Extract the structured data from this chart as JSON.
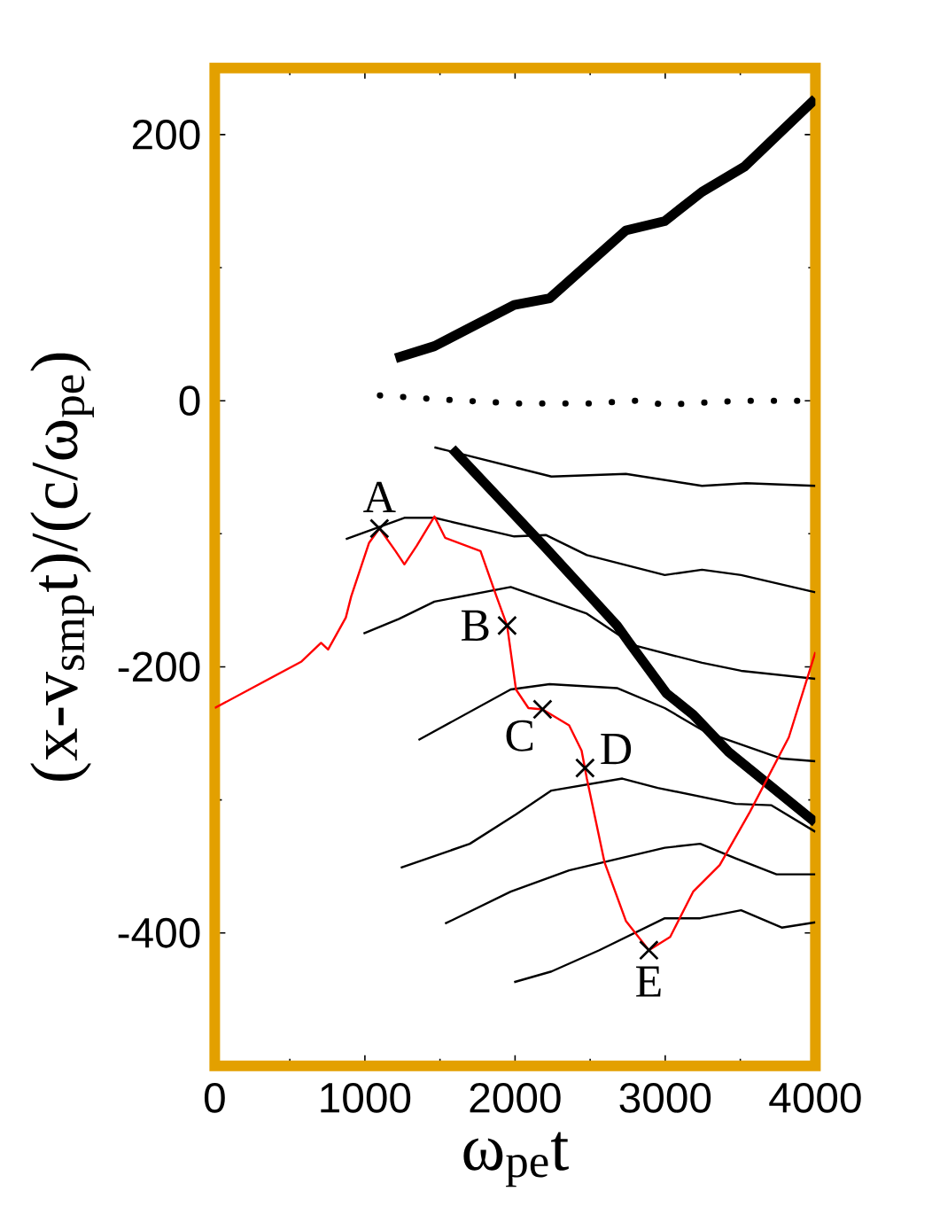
{
  "chart_data": {
    "type": "line",
    "xlabel": "ω$_{pe}$t",
    "ylabel": "(x-v$_{smp}$t)/(c/ω$_{pe}$)",
    "xlim": [
      0,
      4000
    ],
    "ylim": [
      -500,
      250
    ],
    "xticks": [
      0,
      1000,
      2000,
      3000,
      4000
    ],
    "yticks": [
      -400,
      -200,
      0,
      200
    ],
    "marker": "none",
    "series": [
      {
        "color": "#000000",
        "x": [
          1204,
          1463,
          1994,
          2230,
          2738,
          2997,
          3245,
          3528,
          4000
        ],
        "values": [
          32,
          41,
          72,
          77,
          128,
          135,
          157,
          176,
          227
        ]
      },
      {
        "color": "#000000",
        "line_style": "dotted",
        "x": [
          1100,
          1500,
          2000,
          2500,
          2800,
          3000,
          3500,
          4000
        ],
        "values": [
          4,
          1,
          -2,
          -2,
          0,
          -3,
          0,
          0
        ]
      },
      {
        "color": "#000000",
        "x": [
          1581,
          2207,
          2679,
          2761,
          3009,
          3186,
          3422,
          4000
        ],
        "values": [
          -36,
          -111,
          -169,
          -182,
          -220,
          -236,
          -264,
          -317
        ]
      },
      {
        "color": "#000000",
        "x": [
          1463,
          2242,
          2738,
          3245,
          3540,
          4000
        ],
        "values": [
          -35,
          -57,
          -55,
          -64,
          -62,
          -64
        ]
      },
      {
        "color": "#000000",
        "x": [
          873,
          1263,
          1463,
          1994,
          2207,
          2478,
          2997,
          3245,
          3505,
          4000
        ],
        "values": [
          -104,
          -88,
          -88,
          -102,
          -101,
          -116,
          -131,
          -127,
          -131,
          -144
        ]
      },
      {
        "color": "#000000",
        "x": [
          991,
          1227,
          1463,
          1971,
          2478,
          2797,
          3245,
          3505,
          4000
        ],
        "values": [
          -175,
          -164,
          -151,
          -140,
          -160,
          -184,
          -197,
          -203,
          -209
        ]
      },
      {
        "color": "#000000",
        "x": [
          1357,
          1971,
          2230,
          2679,
          2997,
          3269,
          3776,
          4000
        ],
        "values": [
          -255,
          -217,
          -213,
          -216,
          -231,
          -249,
          -269,
          -271
        ]
      },
      {
        "color": "#000000",
        "x": [
          1239,
          1699,
          2006,
          2242,
          2714,
          2950,
          3469,
          3705,
          4000
        ],
        "values": [
          -351,
          -333,
          -311,
          -293,
          -284,
          -291,
          -303,
          -304,
          -324
        ]
      },
      {
        "color": "#000000",
        "x": [
          1534,
          1971,
          2360,
          2997,
          3233,
          3469,
          3741,
          4000
        ],
        "values": [
          -393,
          -369,
          -353,
          -336,
          -333,
          -344,
          -356,
          -356
        ]
      },
      {
        "color": "#000000",
        "x": [
          1994,
          2242,
          2561,
          2997,
          3233,
          3505,
          3776,
          4000
        ],
        "values": [
          -437,
          -429,
          -413,
          -389,
          -389,
          -383,
          -396,
          -392
        ]
      },
      {
        "color": "#ff0000",
        "x": [
          0,
          578,
          708,
          755,
          873,
          909,
          1027,
          1097,
          1204,
          1263,
          1345,
          1463,
          1534,
          1770,
          1876,
          1947,
          2006,
          2089,
          2183,
          2360,
          2443,
          2478,
          2596,
          2738,
          2891,
          3033,
          3186,
          3363,
          3564,
          3823,
          4000
        ],
        "values": [
          -231,
          -196,
          -182,
          -187,
          -163,
          -147,
          -107,
          -96,
          -113,
          -123,
          -109,
          -87,
          -103,
          -113,
          -147,
          -169,
          -217,
          -231,
          -232,
          -244,
          -263,
          -284,
          -347,
          -391,
          -413,
          -403,
          -369,
          -349,
          -309,
          -253,
          -189
        ]
      },
      {
        "type": "scatter",
        "marker": "cross",
        "color": "#000000",
        "x": [
          1097,
          1947,
          2183,
          2466,
          2891
        ],
        "values": [
          -96,
          -169,
          -232,
          -276,
          -413
        ]
      }
    ],
    "annotations": [
      {
        "text": "A",
        "x": 1097,
        "y": -96
      },
      {
        "text": "B",
        "x": 1947,
        "y": -169
      },
      {
        "text": "C",
        "x": 2183,
        "y": -232
      },
      {
        "text": "D",
        "x": 2466,
        "y": -276
      },
      {
        "text": "E",
        "x": 2891,
        "y": -413
      }
    ]
  }
}
